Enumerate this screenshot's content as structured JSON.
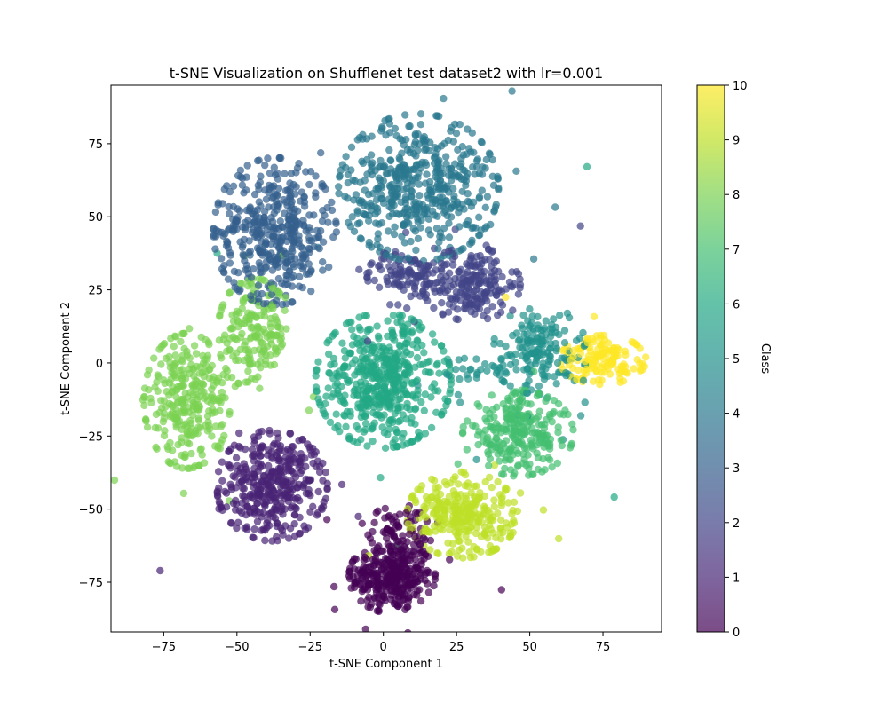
{
  "chart_data": {
    "type": "scatter",
    "title": "t-SNE Visualization on Shufflenet test dataset2 with lr=0.001",
    "xlabel": "t-SNE Component 1",
    "ylabel": "t-SNE Component 2",
    "xlim": [
      -93,
      95
    ],
    "ylim": [
      -92,
      95
    ],
    "xticks": [
      -75,
      -50,
      -25,
      0,
      25,
      50,
      75
    ],
    "yticks": [
      -75,
      -50,
      -25,
      0,
      25,
      50,
      75
    ],
    "xtick_labels": [
      "−75",
      "−50",
      "−25",
      "0",
      "25",
      "50",
      "75"
    ],
    "ytick_labels": [
      "−75",
      "−50",
      "−25",
      "0",
      "25",
      "50",
      "75"
    ],
    "grid": false,
    "colormap": "viridis",
    "point_alpha": 0.7,
    "colorbar": {
      "label": "Class",
      "min": 0,
      "max": 10,
      "ticks": [
        0,
        1,
        2,
        3,
        4,
        5,
        6,
        7,
        8,
        9,
        10
      ],
      "tick_labels": [
        "0",
        "1",
        "2",
        "3",
        "4",
        "5",
        "6",
        "7",
        "8",
        "9",
        "10"
      ]
    },
    "clusters": [
      {
        "class": 0,
        "cx": 3,
        "cy": -73,
        "sx": 7,
        "sy": 6,
        "n": 320
      },
      {
        "class": 0,
        "cx": 5,
        "cy": -57,
        "sx": 5,
        "sy": 4,
        "n": 60
      },
      {
        "class": 1,
        "cx": -38,
        "cy": -42,
        "sx": 9,
        "sy": 9,
        "n": 380
      },
      {
        "class": 2,
        "cx": 30,
        "cy": 27,
        "sx": 8,
        "sy": 6,
        "n": 200
      },
      {
        "class": 2,
        "cx": 7,
        "cy": 30,
        "sx": 6,
        "sy": 4,
        "n": 90
      },
      {
        "class": 3,
        "cx": -37,
        "cy": 45,
        "sx": 10,
        "sy": 12,
        "n": 430
      },
      {
        "class": 4,
        "cx": 12,
        "cy": 60,
        "sx": 13,
        "sy": 12,
        "n": 480
      },
      {
        "class": 5,
        "cx": 53,
        "cy": 4,
        "sx": 8,
        "sy": 7,
        "n": 160
      },
      {
        "class": 5,
        "cx": 33,
        "cy": -2,
        "sx": 6,
        "sy": 2,
        "n": 25
      },
      {
        "class": 6,
        "cx": 0,
        "cy": -6,
        "sx": 11,
        "sy": 11,
        "n": 500
      },
      {
        "class": 7,
        "cx": 46,
        "cy": -24,
        "sx": 9,
        "sy": 7,
        "n": 260
      },
      {
        "class": 8,
        "cx": -44,
        "cy": 10,
        "sx": 6,
        "sy": 9,
        "n": 180
      },
      {
        "class": 8,
        "cx": -67,
        "cy": -13,
        "sx": 7,
        "sy": 11,
        "n": 280
      },
      {
        "class": 9,
        "cx": 27,
        "cy": -52,
        "sx": 9,
        "sy": 7,
        "n": 280
      },
      {
        "class": 10,
        "cx": 75,
        "cy": 1,
        "sx": 7,
        "sy": 4,
        "n": 140
      }
    ]
  }
}
